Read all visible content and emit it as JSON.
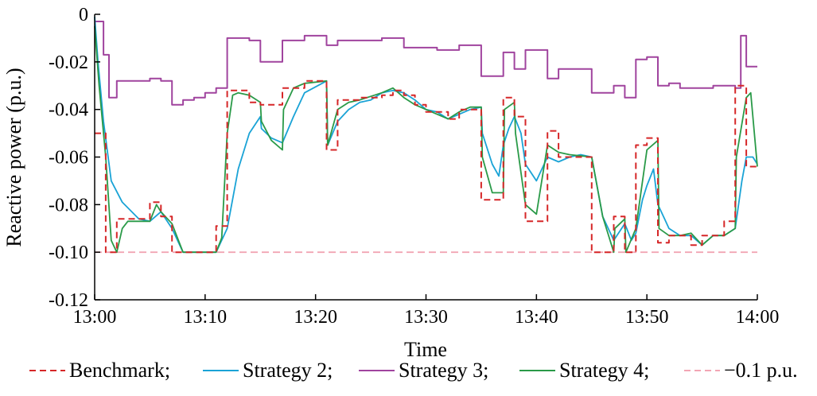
{
  "chart_data": {
    "type": "line",
    "xlabel": "Time",
    "ylabel": "Reactive power (p.u.)",
    "xlim": [
      0,
      60
    ],
    "ylim": [
      -0.12,
      0
    ],
    "x_ticks": [
      {
        "value": 0,
        "label": "13:00"
      },
      {
        "value": 10,
        "label": "13:10"
      },
      {
        "value": 20,
        "label": "13:20"
      },
      {
        "value": 30,
        "label": "13:30"
      },
      {
        "value": 40,
        "label": "13:40"
      },
      {
        "value": 50,
        "label": "13:50"
      },
      {
        "value": 60,
        "label": "14:00"
      }
    ],
    "y_ticks": [
      {
        "value": 0,
        "label": "0"
      },
      {
        "value": -0.02,
        "label": "-0.02"
      },
      {
        "value": -0.04,
        "label": "-0.04"
      },
      {
        "value": -0.06,
        "label": "-0.06"
      },
      {
        "value": -0.08,
        "label": "-0.08"
      },
      {
        "value": -0.1,
        "label": "-0.10"
      },
      {
        "value": -0.12,
        "label": "-0.12"
      }
    ],
    "grid": false,
    "legend_position": "bottom",
    "colors": {
      "benchmark": "#d62728",
      "strategy2": "#1aa3d6",
      "strategy3": "#a0449e",
      "strategy4": "#2a9a48",
      "limit": "#f2a6b4"
    },
    "series": [
      {
        "name": "Benchmark;",
        "style": "dashed-step",
        "x": [
          0,
          1,
          2,
          3,
          5,
          6,
          7,
          11,
          12,
          14,
          15,
          17,
          19,
          21,
          22,
          24,
          26,
          27,
          28,
          29,
          30,
          32,
          33,
          35,
          37,
          38,
          39,
          41,
          42,
          45,
          47,
          48,
          49,
          50,
          51,
          52,
          53,
          54,
          55,
          57,
          58,
          59,
          60
        ],
        "y": [
          -0.05,
          -0.1,
          -0.086,
          -0.086,
          -0.079,
          -0.085,
          -0.1,
          -0.089,
          -0.032,
          -0.037,
          -0.038,
          -0.031,
          -0.028,
          -0.057,
          -0.036,
          -0.035,
          -0.034,
          -0.032,
          -0.034,
          -0.038,
          -0.041,
          -0.044,
          -0.04,
          -0.078,
          -0.035,
          -0.043,
          -0.087,
          -0.049,
          -0.06,
          -0.1,
          -0.085,
          -0.1,
          -0.055,
          -0.052,
          -0.096,
          -0.093,
          -0.093,
          -0.097,
          -0.093,
          -0.087,
          -0.03,
          -0.064,
          -0.064
        ]
      },
      {
        "name": "Strategy 2;",
        "style": "solid",
        "x": [
          0,
          0.3,
          0.8,
          1.5,
          2.5,
          4,
          5,
          6,
          7,
          8,
          11,
          12,
          13,
          14,
          15,
          15.1,
          16,
          17,
          18,
          19,
          21,
          21.1,
          22,
          23,
          24,
          25,
          26,
          27,
          28,
          29,
          30,
          31,
          32,
          33,
          34,
          35,
          35.1,
          36,
          36.6,
          37,
          37.5,
          38,
          38.6,
          39,
          40,
          41,
          42,
          43,
          44,
          45,
          46,
          47,
          48,
          48.6,
          49,
          49.6,
          50,
          50.6,
          51,
          51.6,
          52,
          53,
          54,
          55,
          56,
          57,
          58,
          58.6,
          59,
          59.6,
          60
        ],
        "y": [
          -0.001,
          -0.02,
          -0.045,
          -0.07,
          -0.079,
          -0.086,
          -0.087,
          -0.083,
          -0.09,
          -0.1,
          -0.1,
          -0.09,
          -0.065,
          -0.05,
          -0.043,
          -0.048,
          -0.052,
          -0.054,
          -0.043,
          -0.033,
          -0.028,
          -0.055,
          -0.045,
          -0.04,
          -0.037,
          -0.036,
          -0.033,
          -0.032,
          -0.033,
          -0.036,
          -0.04,
          -0.041,
          -0.044,
          -0.042,
          -0.04,
          -0.039,
          -0.05,
          -0.063,
          -0.068,
          -0.055,
          -0.048,
          -0.043,
          -0.05,
          -0.063,
          -0.07,
          -0.06,
          -0.062,
          -0.06,
          -0.059,
          -0.06,
          -0.085,
          -0.095,
          -0.088,
          -0.095,
          -0.092,
          -0.078,
          -0.072,
          -0.065,
          -0.08,
          -0.086,
          -0.09,
          -0.093,
          -0.093,
          -0.097,
          -0.093,
          -0.093,
          -0.09,
          -0.07,
          -0.06,
          -0.06,
          -0.063
        ]
      },
      {
        "name": "Strategy 3;",
        "style": "step",
        "x": [
          0,
          0.8,
          1.3,
          2,
          5,
          6,
          7,
          8,
          9,
          10,
          11,
          12,
          14,
          15,
          17,
          19,
          21,
          22,
          26,
          28,
          31,
          33,
          35,
          37,
          38,
          39,
          41,
          42,
          45,
          47,
          48,
          49,
          50,
          51,
          52,
          53,
          56,
          58,
          58.5,
          59,
          60
        ],
        "y": [
          -0.003,
          -0.017,
          -0.035,
          -0.028,
          -0.027,
          -0.028,
          -0.038,
          -0.036,
          -0.035,
          -0.033,
          -0.031,
          -0.01,
          -0.011,
          -0.02,
          -0.011,
          -0.009,
          -0.013,
          -0.011,
          -0.01,
          -0.014,
          -0.015,
          -0.013,
          -0.026,
          -0.016,
          -0.023,
          -0.015,
          -0.027,
          -0.023,
          -0.033,
          -0.03,
          -0.035,
          -0.019,
          -0.018,
          -0.03,
          -0.029,
          -0.031,
          -0.03,
          -0.031,
          -0.009,
          -0.022,
          -0.022
        ]
      },
      {
        "name": "Strategy 4;",
        "style": "solid",
        "x": [
          0,
          0.4,
          1,
          1.5,
          2,
          2.5,
          3,
          5,
          5.6,
          6,
          7,
          8,
          11,
          11.5,
          12,
          12.5,
          13,
          14,
          15,
          15.1,
          16,
          17,
          17.1,
          18,
          19,
          21,
          21.1,
          22,
          23,
          24,
          26,
          27,
          28,
          29,
          30,
          32,
          33,
          34,
          35,
          35.1,
          36,
          37,
          37.1,
          38,
          38.1,
          39,
          40,
          41,
          42,
          43,
          45,
          46,
          47,
          47.1,
          48,
          48.1,
          49,
          50,
          51,
          51.1,
          52,
          53,
          54,
          55,
          56,
          57,
          58,
          58.1,
          59,
          59.4,
          60
        ],
        "y": [
          -0.005,
          -0.03,
          -0.06,
          -0.095,
          -0.1,
          -0.09,
          -0.087,
          -0.087,
          -0.08,
          -0.083,
          -0.088,
          -0.1,
          -0.1,
          -0.094,
          -0.05,
          -0.034,
          -0.033,
          -0.034,
          -0.037,
          -0.045,
          -0.053,
          -0.057,
          -0.04,
          -0.031,
          -0.029,
          -0.028,
          -0.055,
          -0.04,
          -0.037,
          -0.036,
          -0.033,
          -0.031,
          -0.035,
          -0.038,
          -0.04,
          -0.044,
          -0.041,
          -0.039,
          -0.039,
          -0.06,
          -0.075,
          -0.075,
          -0.04,
          -0.037,
          -0.05,
          -0.08,
          -0.084,
          -0.055,
          -0.058,
          -0.059,
          -0.06,
          -0.085,
          -0.1,
          -0.09,
          -0.086,
          -0.1,
          -0.09,
          -0.057,
          -0.053,
          -0.09,
          -0.093,
          -0.093,
          -0.092,
          -0.097,
          -0.093,
          -0.093,
          -0.09,
          -0.06,
          -0.035,
          -0.033,
          -0.064
        ]
      },
      {
        "name": "−0.1 p.u.",
        "style": "dashed",
        "x": [
          0,
          60
        ],
        "y": [
          -0.1,
          -0.1
        ]
      }
    ]
  }
}
